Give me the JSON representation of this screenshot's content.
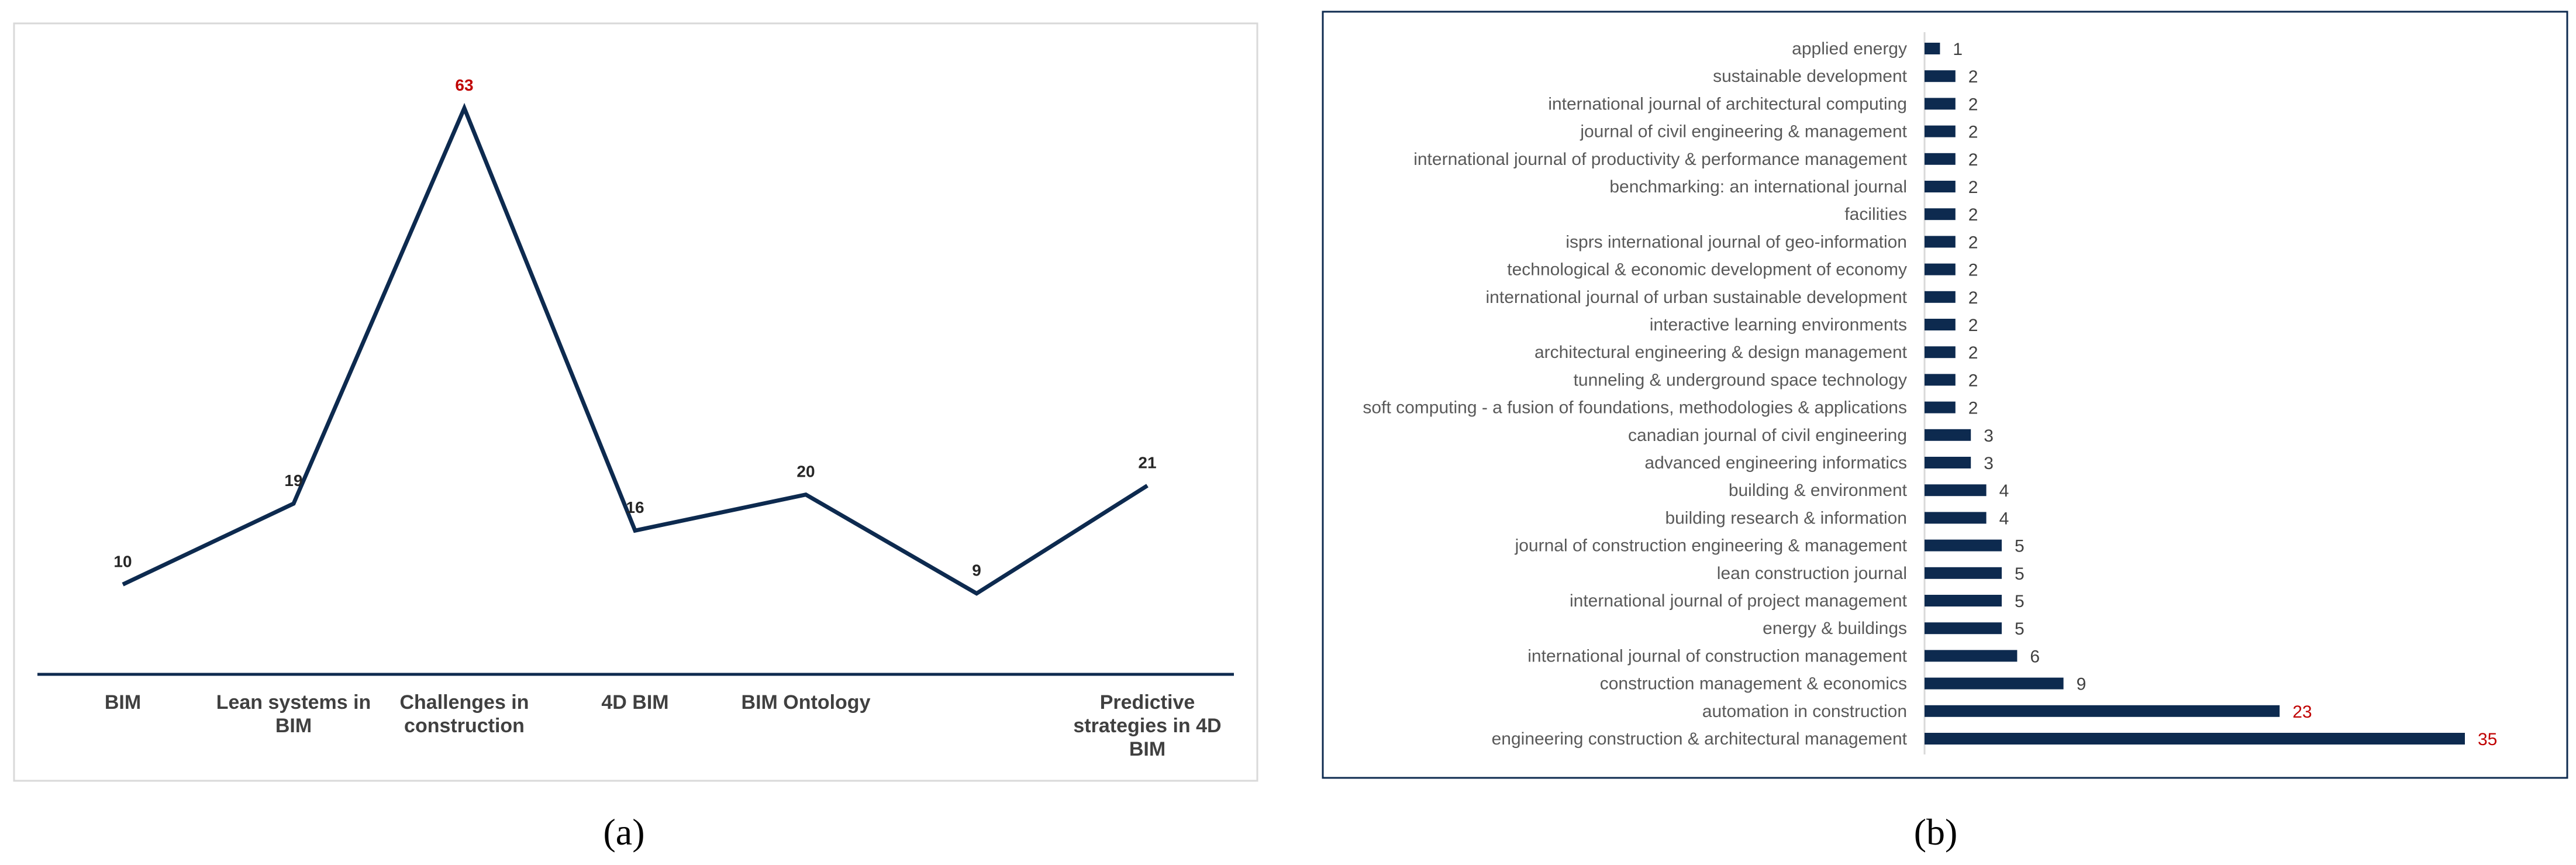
{
  "colors": {
    "line": "#0d2a4f",
    "bar": "#0d2a4f",
    "label_dark": "#262626",
    "label_highlight": "#c00000",
    "axis": "#0d2a4f",
    "border": "#d9d9d9"
  },
  "captions": {
    "a": "(a)",
    "b": "(b)"
  },
  "chart_data": [
    {
      "type": "line",
      "categories": [
        "BIM",
        "Lean systems in BIM",
        "Challenges in construction",
        "4D BIM",
        "BIM Ontology",
        "",
        "Predictive strategies in 4D BIM"
      ],
      "category_lines": [
        [
          "BIM"
        ],
        [
          "Lean systems in",
          "BIM"
        ],
        [
          "Challenges in",
          "construction"
        ],
        [
          "4D BIM"
        ],
        [
          "BIM Ontology"
        ],
        [],
        [
          "Predictive",
          "strategies in 4D",
          "BIM"
        ]
      ],
      "values": [
        10,
        19,
        63,
        16,
        20,
        9,
        21
      ],
      "highlight_index": 2,
      "ylim": [
        0,
        70
      ],
      "grid": false,
      "title": "",
      "xlabel": "",
      "ylabel": ""
    },
    {
      "type": "bar",
      "orientation": "horizontal",
      "categories": [
        "applied energy",
        "sustainable development",
        "international journal of architectural computing",
        "journal of civil engineering & management",
        "international journal of productivity & performance management",
        "benchmarking: an international journal",
        "facilities",
        "isprs international journal of geo-information",
        "technological & economic development of economy",
        "international journal of urban sustainable development",
        "interactive learning environments",
        "architectural engineering & design management",
        "tunneling & underground space technology",
        "soft computing - a fusion of foundations, methodologies & applications",
        "canadian journal of civil engineering",
        "advanced engineering informatics",
        "building & environment",
        "building research & information",
        "journal of construction engineering & management",
        "lean construction journal",
        "international journal of project management",
        "energy & buildings",
        "international journal of construction management",
        "construction management & economics",
        "automation in construction",
        "engineering construction & architectural management"
      ],
      "values": [
        1,
        2,
        2,
        2,
        2,
        2,
        2,
        2,
        2,
        2,
        2,
        2,
        2,
        2,
        3,
        3,
        4,
        4,
        5,
        5,
        5,
        5,
        6,
        9,
        23,
        35
      ],
      "highlight_indices": [
        24,
        25
      ],
      "xlim": [
        0,
        37
      ],
      "grid": false,
      "title": "",
      "xlabel": "",
      "ylabel": ""
    }
  ]
}
